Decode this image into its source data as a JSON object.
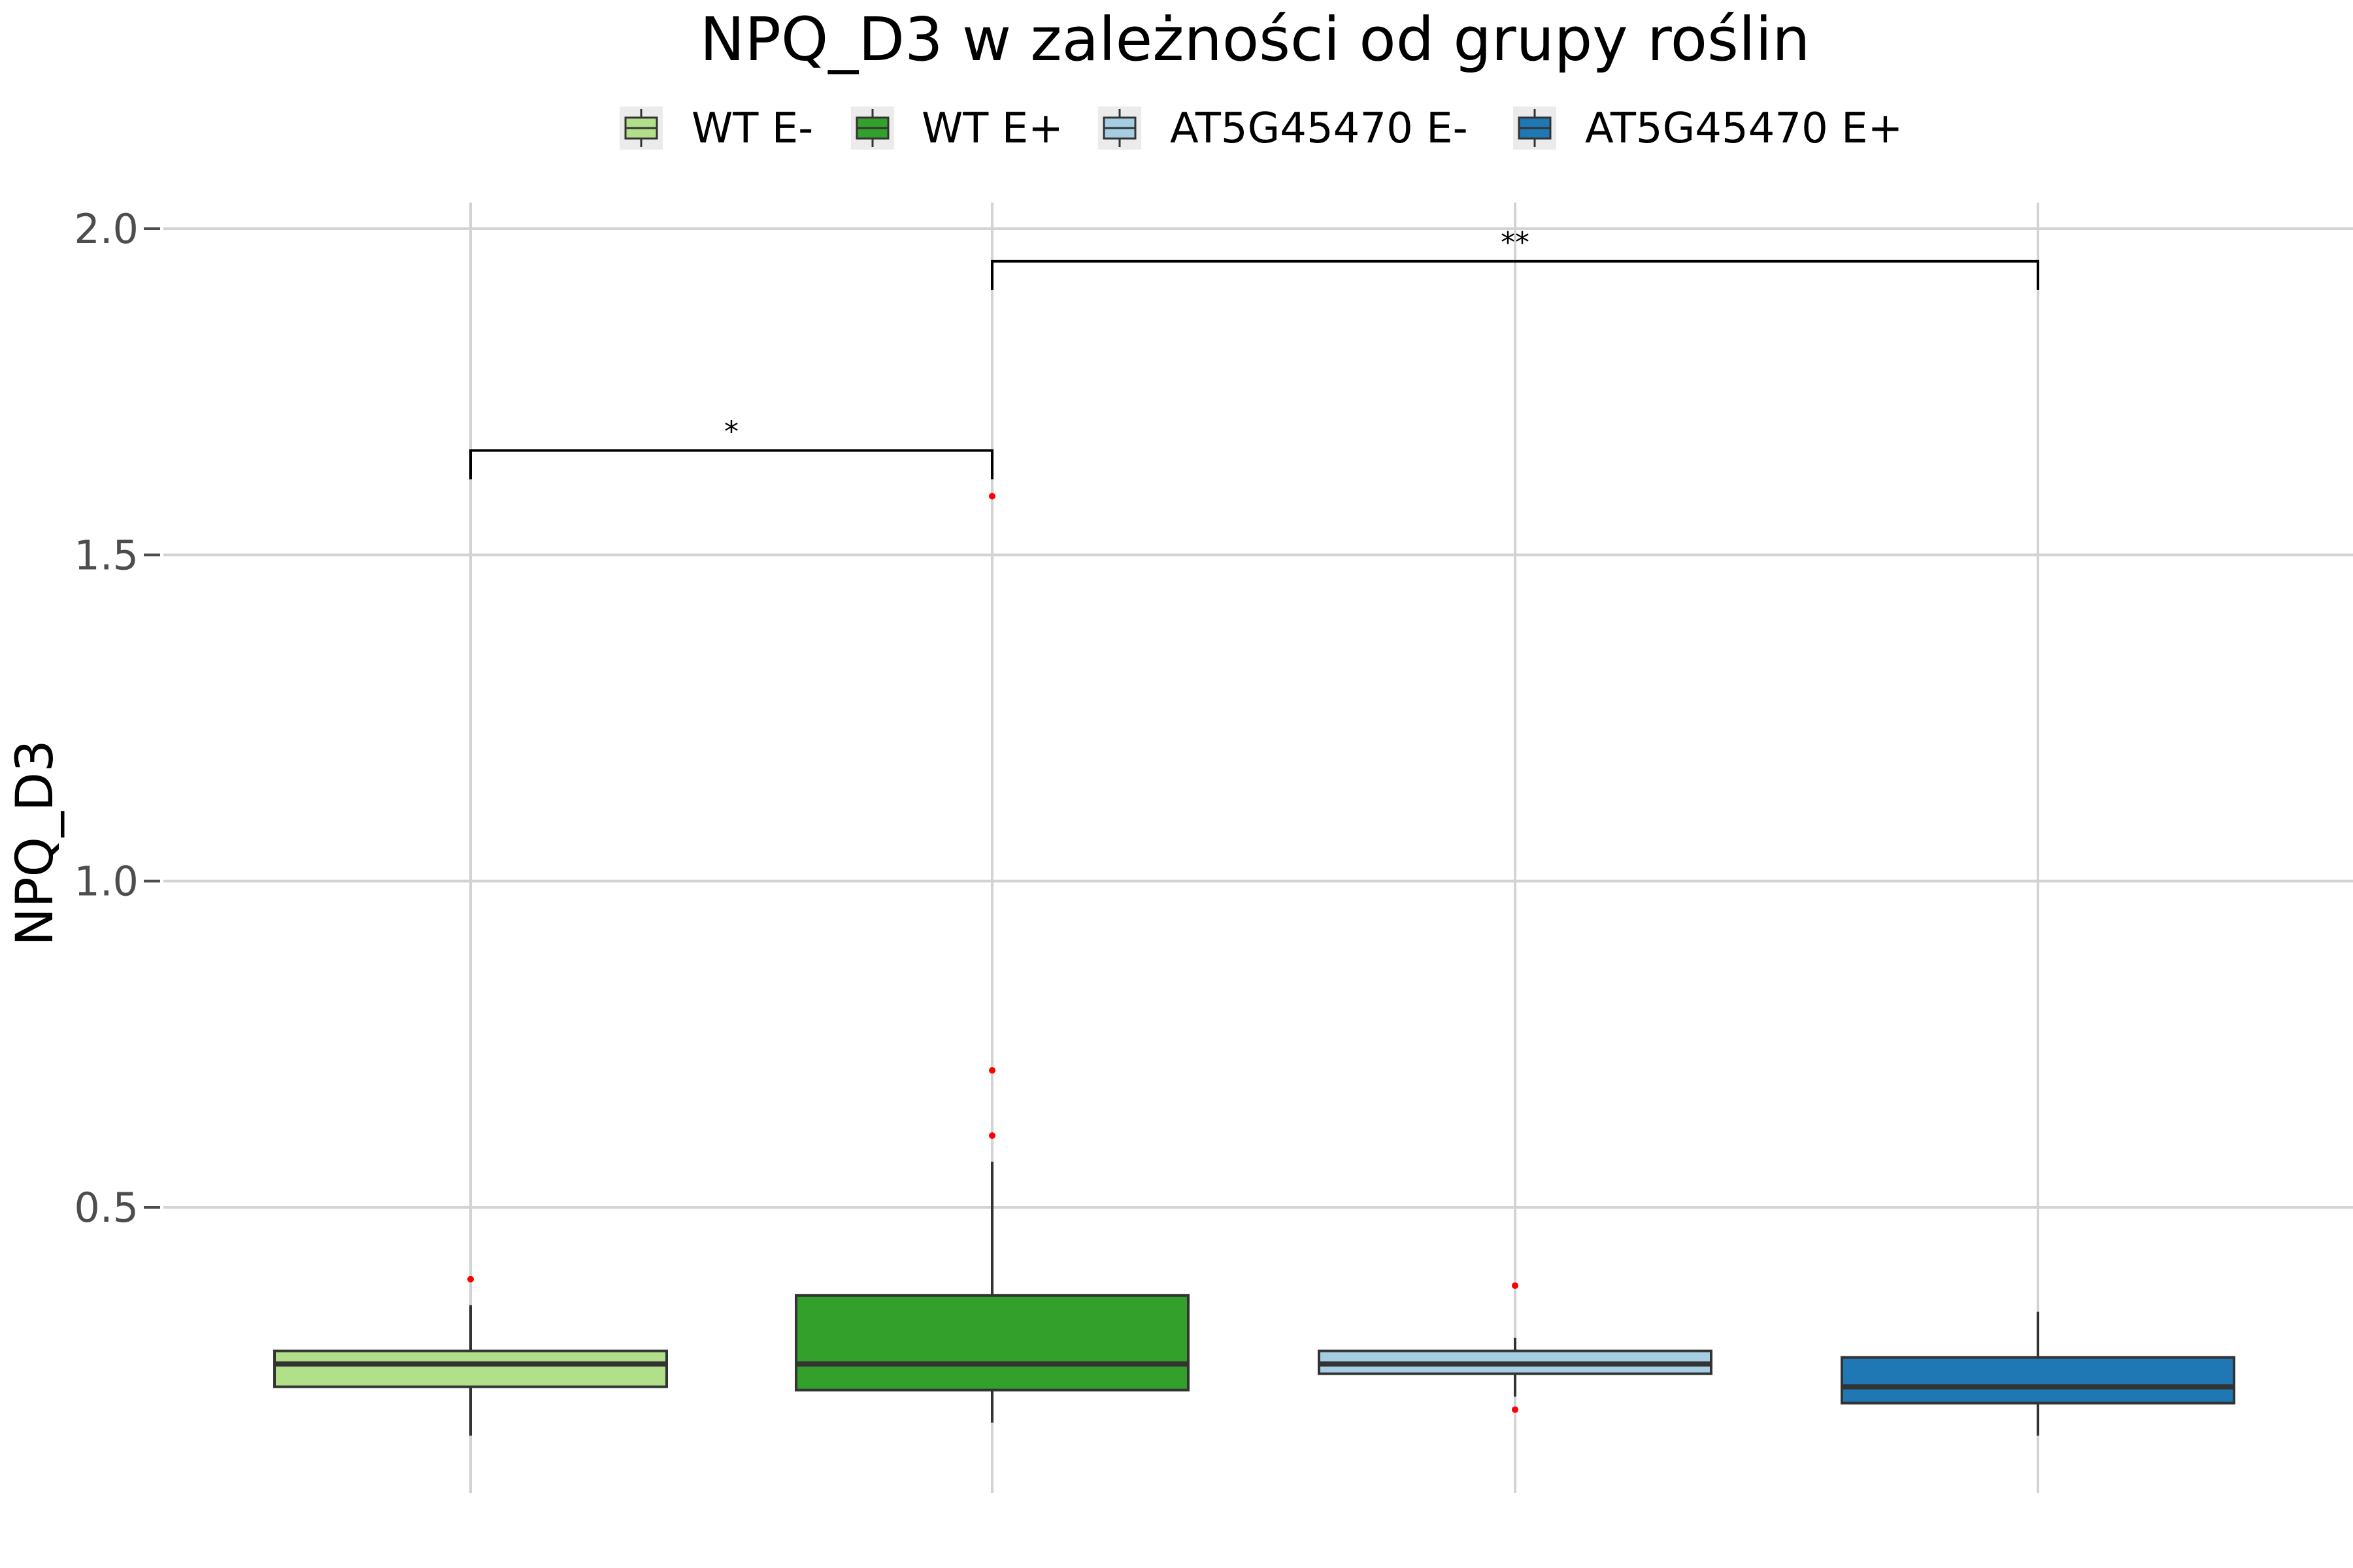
{
  "chart_data": {
    "type": "boxplot",
    "title": "NPQ_D3 w zależności od grupy roślin",
    "ylabel": "NPQ_D3",
    "xlabel": "",
    "ylim": [
      0.08,
      2.05
    ],
    "yticks": [
      0.5,
      1.0,
      1.5,
      2.0
    ],
    "ytick_labels": [
      "0.5",
      "1.0",
      "1.5",
      "2.0"
    ],
    "grid": true,
    "legend": {
      "position": "top",
      "entries": [
        "WT E-",
        "WT E+",
        "AT5G45470 E-",
        "AT5G45470 E+"
      ]
    },
    "series": [
      {
        "name": "WT E-",
        "color": "#b2df8a",
        "whisker_low": 0.15,
        "q1": 0.225,
        "median": 0.26,
        "q3": 0.28,
        "whisker_high": 0.35,
        "outliers": [
          0.39
        ]
      },
      {
        "name": "WT E+",
        "color": "#33a02c",
        "whisker_low": 0.17,
        "q1": 0.22,
        "median": 0.26,
        "q3": 0.365,
        "whisker_high": 0.57,
        "outliers": [
          0.61,
          0.71,
          1.59
        ]
      },
      {
        "name": "AT5G45470 E-",
        "color": "#a6cee3",
        "whisker_low": 0.21,
        "q1": 0.245,
        "median": 0.26,
        "q3": 0.28,
        "whisker_high": 0.3,
        "outliers": [
          0.38,
          0.19
        ]
      },
      {
        "name": "AT5G45470 E+",
        "color": "#1f78b4",
        "whisker_low": 0.15,
        "q1": 0.2,
        "median": 0.225,
        "q3": 0.27,
        "whisker_high": 0.34,
        "outliers": []
      }
    ],
    "outlier_color": "#ff0000",
    "significance": [
      {
        "from": 0,
        "to": 1,
        "y": 1.66,
        "label": "*"
      },
      {
        "from": 1,
        "to": 3,
        "y": 1.95,
        "label": "**"
      }
    ]
  }
}
